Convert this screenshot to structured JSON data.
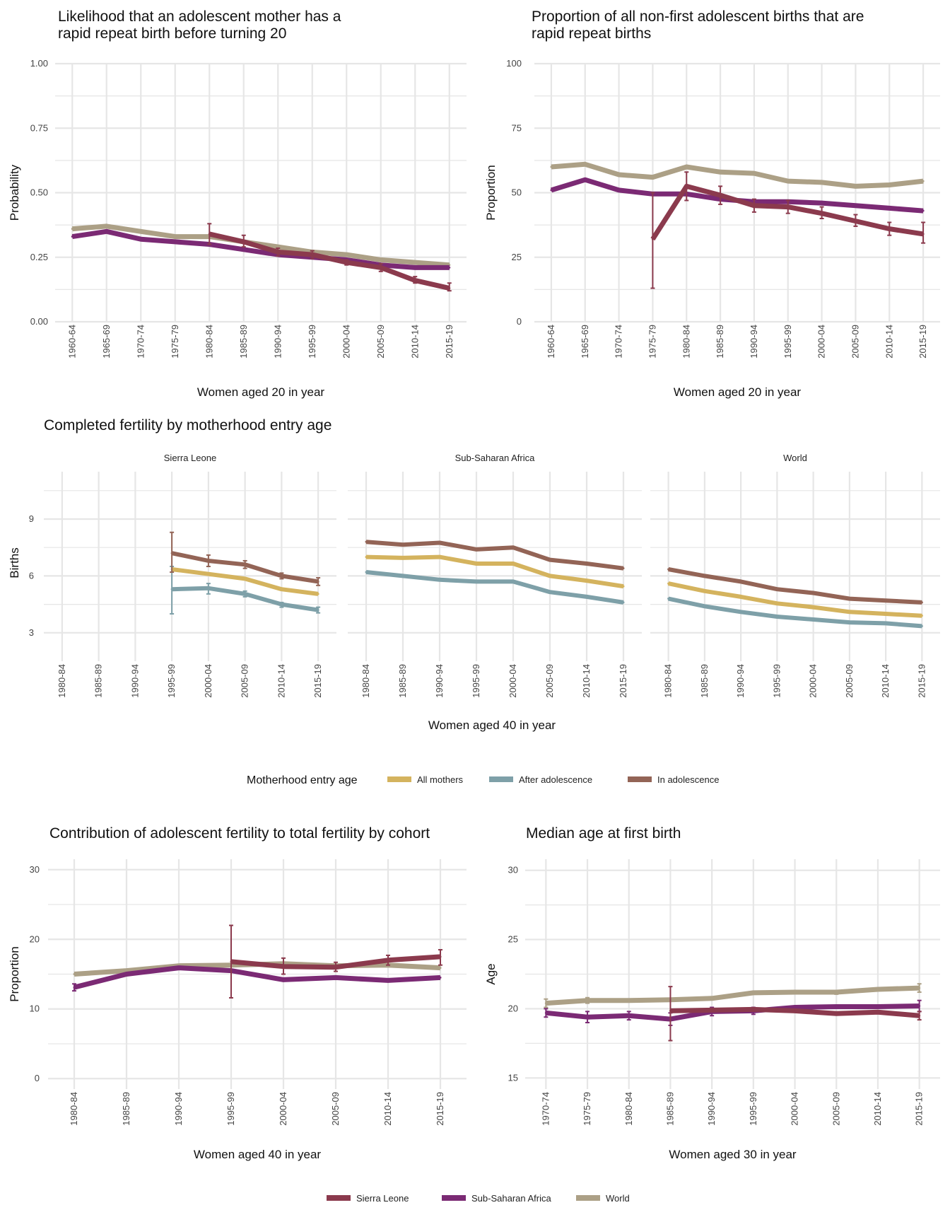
{
  "colors": {
    "sierra_leone": "#8b3a4d",
    "ssa": "#7b2a74",
    "world": "#aca086",
    "all_mothers": "#d4b35e",
    "after_adolescence": "#7ea0a8",
    "in_adolescence": "#936456",
    "grid": "#e6e6e6"
  },
  "chart_data": [
    {
      "id": "rapid",
      "type": "line",
      "title_lines": [
        "Likelihood that an adolescent mother has a",
        "rapid repeat birth before turning 20"
      ],
      "xlabel": "Women aged 20 in year",
      "ylabel": "Probability",
      "categories": [
        "1960-64",
        "1965-69",
        "1970-74",
        "1975-79",
        "1980-84",
        "1985-89",
        "1990-94",
        "1995-99",
        "2000-04",
        "2005-09",
        "2010-14",
        "2015-19"
      ],
      "ylim": [
        0,
        1
      ],
      "yticks": [
        0,
        0.25,
        0.5,
        0.75,
        1
      ],
      "ytick_labels": [
        "0.00",
        "0.25",
        "0.50",
        "0.75",
        "1.00"
      ],
      "series": [
        {
          "name": "World",
          "color_key": "world",
          "values": [
            0.36,
            0.37,
            0.35,
            0.33,
            0.33,
            0.31,
            0.29,
            0.27,
            0.26,
            0.24,
            0.23,
            0.22
          ]
        },
        {
          "name": "Sub-Saharan Africa",
          "color_key": "ssa",
          "values": [
            0.33,
            0.35,
            0.32,
            0.31,
            0.3,
            0.28,
            0.26,
            0.25,
            0.24,
            0.22,
            0.21,
            0.21
          ]
        },
        {
          "name": "Sierra Leone",
          "color_key": "sierra_leone",
          "values": [
            null,
            null,
            null,
            null,
            0.34,
            0.31,
            0.27,
            0.26,
            0.23,
            0.21,
            0.16,
            0.13
          ],
          "err": [
            null,
            null,
            null,
            null,
            [
              0.3,
              0.38
            ],
            [
              0.29,
              0.335
            ],
            [
              0.255,
              0.285
            ],
            [
              0.245,
              0.275
            ],
            [
              0.22,
              0.24
            ],
            [
              0.195,
              0.225
            ],
            [
              0.15,
              0.175
            ],
            [
              0.12,
              0.15
            ]
          ]
        }
      ]
    },
    {
      "id": "nonfirst",
      "type": "line",
      "title_lines": [
        "Proportion of all non-first adolescent births that are",
        "rapid repeat births"
      ],
      "xlabel": "Women aged 20 in year",
      "ylabel": "Proportion",
      "categories": [
        "1960-64",
        "1965-69",
        "1970-74",
        "1975-79",
        "1980-84",
        "1985-89",
        "1990-94",
        "1995-99",
        "2000-04",
        "2005-09",
        "2010-14",
        "2015-19"
      ],
      "ylim": [
        0,
        100
      ],
      "yticks": [
        0,
        25,
        50,
        75,
        100
      ],
      "ytick_labels": [
        "0",
        "25",
        "50",
        "75",
        "100"
      ],
      "series": [
        {
          "name": "World",
          "color_key": "world",
          "values": [
            60,
            61,
            57,
            56,
            60,
            58,
            57.5,
            54.5,
            54,
            52.5,
            53,
            54.5
          ]
        },
        {
          "name": "Sub-Saharan Africa",
          "color_key": "ssa",
          "values": [
            51,
            55,
            51,
            49.5,
            49.5,
            47.5,
            46.5,
            46.5,
            46,
            45,
            44,
            43
          ]
        },
        {
          "name": "Sierra Leone",
          "color_key": "sierra_leone",
          "values": [
            null,
            null,
            null,
            32,
            52.5,
            49,
            45,
            44.5,
            42,
            39,
            36,
            34
          ],
          "err": [
            null,
            null,
            null,
            [
              13,
              50
            ],
            [
              47,
              58
            ],
            [
              45.5,
              52.5
            ],
            [
              42.5,
              47.5
            ],
            [
              42,
              47
            ],
            [
              40,
              44.5
            ],
            [
              37,
              41.5
            ],
            [
              33.5,
              38.5
            ],
            [
              30.5,
              38.5
            ]
          ]
        }
      ]
    },
    {
      "id": "completed",
      "type": "line",
      "title": "Completed fertility by motherhood entry age",
      "xlabel": "Women aged 40 in year",
      "ylabel": "Births",
      "categories": [
        "1980-84",
        "1985-89",
        "1990-94",
        "1995-99",
        "2000-04",
        "2005-09",
        "2010-14",
        "2015-19"
      ],
      "ylim": [
        1.5,
        11.5
      ],
      "yticks": [
        3,
        6,
        9
      ],
      "ytick_labels": [
        "3",
        "6",
        "9"
      ],
      "legend_title": "Motherhood entry age",
      "legend": [
        "All mothers",
        "After adolescence",
        "In adolescence"
      ],
      "facets": [
        {
          "name": "Sierra Leone",
          "series": [
            {
              "name": "After adolescence",
              "color_key": "after_adolescence",
              "values": [
                null,
                null,
                null,
                5.3,
                5.35,
                5.05,
                4.5,
                4.2
              ],
              "err": [
                null,
                null,
                null,
                [
                  4.0,
                  6.5
                ],
                [
                  5.05,
                  5.6
                ],
                [
                  4.9,
                  5.2
                ],
                [
                  4.35,
                  4.6
                ],
                [
                  4.05,
                  4.35
                ]
              ]
            },
            {
              "name": "All mothers",
              "color_key": "all_mothers",
              "values": [
                null,
                null,
                null,
                6.35,
                6.1,
                5.85,
                5.3,
                5.05
              ]
            },
            {
              "name": "In adolescence",
              "color_key": "in_adolescence",
              "values": [
                null,
                null,
                null,
                7.2,
                6.8,
                6.6,
                6.0,
                5.7
              ],
              "err": [
                null,
                null,
                null,
                [
                  6.2,
                  8.3
                ],
                [
                  6.5,
                  7.1
                ],
                [
                  6.4,
                  6.8
                ],
                [
                  5.85,
                  6.15
                ],
                [
                  5.5,
                  5.9
                ]
              ]
            }
          ]
        },
        {
          "name": "Sub-Saharan Africa",
          "series": [
            {
              "name": "After adolescence",
              "color_key": "after_adolescence",
              "values": [
                6.2,
                6.0,
                5.8,
                5.7,
                5.7,
                5.15,
                4.9,
                4.6
              ]
            },
            {
              "name": "All mothers",
              "color_key": "all_mothers",
              "values": [
                7.0,
                6.95,
                7.0,
                6.65,
                6.65,
                6.0,
                5.75,
                5.45
              ]
            },
            {
              "name": "In adolescence",
              "color_key": "in_adolescence",
              "values": [
                7.8,
                7.65,
                7.75,
                7.4,
                7.5,
                6.85,
                6.65,
                6.4
              ]
            }
          ]
        },
        {
          "name": "World",
          "series": [
            {
              "name": "After adolescence",
              "color_key": "after_adolescence",
              "values": [
                4.8,
                4.4,
                4.1,
                3.85,
                3.7,
                3.55,
                3.5,
                3.35
              ]
            },
            {
              "name": "All mothers",
              "color_key": "all_mothers",
              "values": [
                5.6,
                5.2,
                4.9,
                4.55,
                4.35,
                4.1,
                4.0,
                3.9
              ]
            },
            {
              "name": "In adolescence",
              "color_key": "in_adolescence",
              "values": [
                6.35,
                6.0,
                5.7,
                5.3,
                5.1,
                4.8,
                4.7,
                4.6
              ]
            }
          ]
        }
      ]
    },
    {
      "id": "contribution",
      "type": "line",
      "title": "Contribution of adolescent fertility to total fertility by cohort",
      "xlabel": "Women aged 40 in year",
      "ylabel": "Proportion",
      "categories": [
        "1980-84",
        "1985-89",
        "1990-94",
        "1995-99",
        "2000-04",
        "2005-09",
        "2010-14",
        "2015-19"
      ],
      "ylim": [
        -1.5,
        31.5
      ],
      "yticks": [
        0,
        10,
        20,
        30
      ],
      "ytick_labels": [
        "0",
        "10",
        "20",
        "30"
      ],
      "series": [
        {
          "name": "World",
          "color_key": "world",
          "values": [
            15,
            15.5,
            16.2,
            16.3,
            16.5,
            16.2,
            16.3,
            15.9
          ]
        },
        {
          "name": "Sub-Saharan Africa",
          "color_key": "ssa",
          "values": [
            13.1,
            15.0,
            15.9,
            15.5,
            14.2,
            14.5,
            14.1,
            14.5
          ],
          "err": [
            [
              12.6,
              13.6
            ],
            null,
            null,
            null,
            null,
            null,
            null,
            null
          ]
        },
        {
          "name": "Sierra Leone",
          "color_key": "sierra_leone",
          "values": [
            null,
            null,
            null,
            16.8,
            16.1,
            16.0,
            17.0,
            17.5
          ],
          "err": [
            null,
            null,
            null,
            [
              11.6,
              22.0
            ],
            [
              15.0,
              17.3
            ],
            [
              15.4,
              16.7
            ],
            [
              16.3,
              17.7
            ],
            [
              16.3,
              18.5
            ]
          ]
        }
      ]
    },
    {
      "id": "median",
      "type": "line",
      "title": "Median age at first birth",
      "xlabel": "Women aged 30 in year",
      "ylabel": "Age",
      "categories": [
        "1970-74",
        "1975-79",
        "1980-84",
        "1985-89",
        "1990-94",
        "1995-99",
        "2000-04",
        "2005-09",
        "2010-14",
        "2015-19"
      ],
      "ylim": [
        14.2,
        30.8
      ],
      "yticks": [
        15,
        20,
        25,
        30
      ],
      "ytick_labels": [
        "15",
        "20",
        "25",
        "30"
      ],
      "series": [
        {
          "name": "World",
          "color_key": "world",
          "values": [
            20.4,
            20.6,
            20.6,
            20.65,
            20.75,
            21.15,
            21.2,
            21.2,
            21.4,
            21.5
          ],
          "err": [
            [
              20.1,
              20.7
            ],
            [
              20.4,
              20.8
            ],
            null,
            null,
            null,
            null,
            null,
            [
              21.05,
              21.3
            ],
            null,
            [
              21.2,
              21.8
            ]
          ]
        },
        {
          "name": "Sub-Saharan Africa",
          "color_key": "ssa",
          "values": [
            19.7,
            19.4,
            19.5,
            19.25,
            19.8,
            19.85,
            20.1,
            20.15,
            20.15,
            20.2
          ],
          "err": [
            [
              19.4,
              20.0
            ],
            [
              19.0,
              19.8
            ],
            [
              19.2,
              19.8
            ],
            [
              18.8,
              19.7
            ],
            [
              19.5,
              20.1
            ],
            [
              19.6,
              20.1
            ],
            null,
            null,
            null,
            [
              19.8,
              20.6
            ]
          ]
        },
        {
          "name": "Sierra Leone",
          "color_key": "sierra_leone",
          "values": [
            null,
            null,
            null,
            19.85,
            19.9,
            19.95,
            19.85,
            19.65,
            19.75,
            19.5
          ],
          "err": [
            null,
            null,
            null,
            [
              17.7,
              21.6
            ],
            null,
            null,
            null,
            null,
            null,
            [
              19.2,
              19.8
            ]
          ]
        }
      ]
    }
  ],
  "bottom_legend": [
    "Sierra Leone",
    "Sub-Saharan Africa",
    "World"
  ]
}
